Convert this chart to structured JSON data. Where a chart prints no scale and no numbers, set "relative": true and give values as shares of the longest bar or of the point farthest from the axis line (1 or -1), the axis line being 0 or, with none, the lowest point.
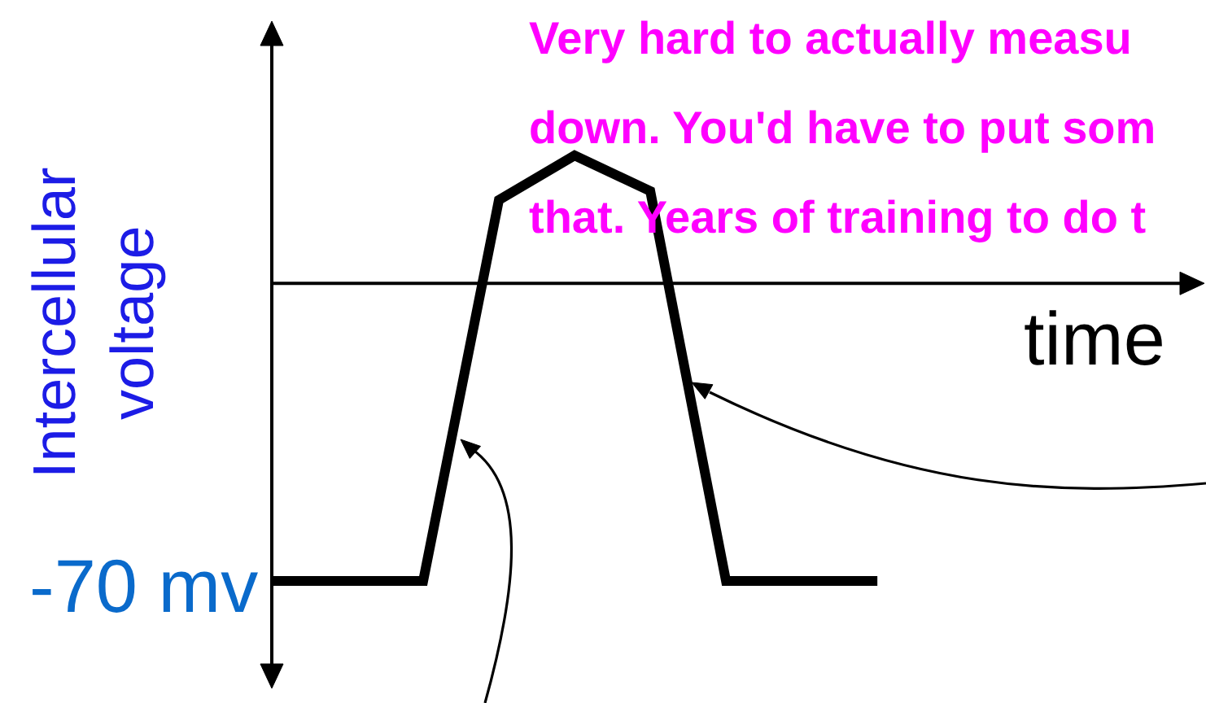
{
  "chart_data": {
    "type": "line",
    "relative": true,
    "xlabel": "time",
    "ylabel": "Intercellular\nvoltage",
    "categories": [
      null,
      null,
      null,
      null,
      null,
      null,
      null,
      null,
      null
    ],
    "series": [
      {
        "color": "#000000",
        "values": [
          -1,
          -1,
          -1,
          0.28,
          0.43,
          0.31,
          -1,
          -1,
          -1
        ]
      }
    ],
    "annotations": [
      "-70 mv",
      "Very hard to actually measu\ndown. You'd have to put som\nthat. Years of training to do t"
    ]
  }
}
